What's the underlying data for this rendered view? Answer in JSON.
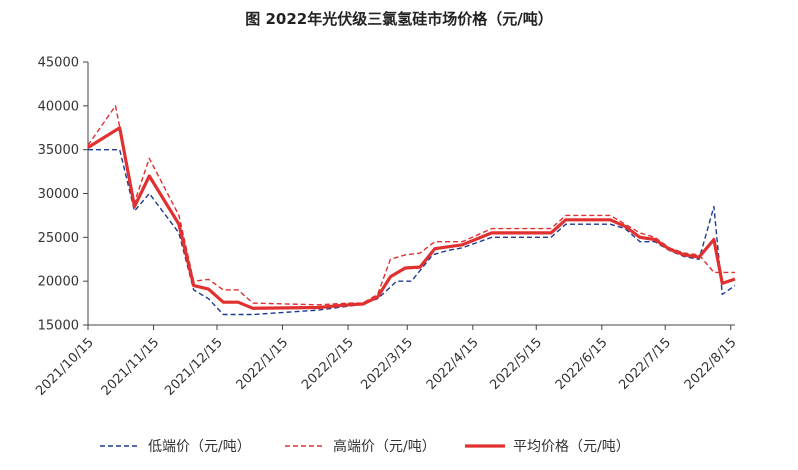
{
  "chart_data": {
    "type": "line",
    "title": "图 2022年光伏级三氯氢硅市场价格（元/吨）",
    "xlabel": "",
    "ylabel": "",
    "ylim": [
      15000,
      45000
    ],
    "yticks": [
      15000,
      20000,
      25000,
      30000,
      35000,
      40000,
      45000
    ],
    "xticks": [
      "2021/10/15",
      "2021/11/15",
      "2021/12/15",
      "2022/1/15",
      "2022/2/15",
      "2022/3/15",
      "2022/4/15",
      "2022/5/15",
      "2022/6/15",
      "2022/7/15",
      "2022/8/15"
    ],
    "grid": false,
    "legend_position": "bottom",
    "series": [
      {
        "name": "低端价（元/吨）",
        "color": "#1f3a93",
        "style": "dashed",
        "values": [
          {
            "date": "2021-10-15",
            "y": 35000
          },
          {
            "date": "2021-10-30",
            "y": 35000
          },
          {
            "date": "2021-11-06",
            "y": 28000
          },
          {
            "date": "2021-11-13",
            "y": 30000
          },
          {
            "date": "2021-11-27",
            "y": 25500
          },
          {
            "date": "2021-12-04",
            "y": 19000
          },
          {
            "date": "2021-12-11",
            "y": 18000
          },
          {
            "date": "2021-12-18",
            "y": 16200
          },
          {
            "date": "2022-01-01",
            "y": 16200
          },
          {
            "date": "2022-02-01",
            "y": 16700
          },
          {
            "date": "2022-02-20",
            "y": 17300
          },
          {
            "date": "2022-03-01",
            "y": 18000
          },
          {
            "date": "2022-03-10",
            "y": 20000
          },
          {
            "date": "2022-03-17",
            "y": 20000
          },
          {
            "date": "2022-03-27",
            "y": 23000
          },
          {
            "date": "2022-04-03",
            "y": 23500
          },
          {
            "date": "2022-04-10",
            "y": 23800
          },
          {
            "date": "2022-04-24",
            "y": 25000
          },
          {
            "date": "2022-05-15",
            "y": 25000
          },
          {
            "date": "2022-05-22",
            "y": 25000
          },
          {
            "date": "2022-05-29",
            "y": 26500
          },
          {
            "date": "2022-06-19",
            "y": 26500
          },
          {
            "date": "2022-06-26",
            "y": 26000
          },
          {
            "date": "2022-07-03",
            "y": 24500
          },
          {
            "date": "2022-07-10",
            "y": 24500
          },
          {
            "date": "2022-07-17",
            "y": 23500
          },
          {
            "date": "2022-07-24",
            "y": 22800
          },
          {
            "date": "2022-07-31",
            "y": 22500
          },
          {
            "date": "2022-08-07",
            "y": 28500
          },
          {
            "date": "2022-08-11",
            "y": 18500
          },
          {
            "date": "2022-08-17",
            "y": 19500
          }
        ]
      },
      {
        "name": "高端价（元/吨）",
        "color": "#e03030",
        "style": "dashed",
        "values": [
          {
            "date": "2021-10-15",
            "y": 35500
          },
          {
            "date": "2021-10-28",
            "y": 40000
          },
          {
            "date": "2021-11-06",
            "y": 29000
          },
          {
            "date": "2021-11-13",
            "y": 34000
          },
          {
            "date": "2021-11-27",
            "y": 27500
          },
          {
            "date": "2021-12-04",
            "y": 20000
          },
          {
            "date": "2021-12-11",
            "y": 20200
          },
          {
            "date": "2021-12-18",
            "y": 19000
          },
          {
            "date": "2021-12-25",
            "y": 19000
          },
          {
            "date": "2022-01-01",
            "y": 17500
          },
          {
            "date": "2022-02-01",
            "y": 17300
          },
          {
            "date": "2022-02-15",
            "y": 17500
          },
          {
            "date": "2022-02-22",
            "y": 17500
          },
          {
            "date": "2022-03-01",
            "y": 18500
          },
          {
            "date": "2022-03-07",
            "y": 22500
          },
          {
            "date": "2022-03-14",
            "y": 23000
          },
          {
            "date": "2022-03-21",
            "y": 23200
          },
          {
            "date": "2022-03-28",
            "y": 24500
          },
          {
            "date": "2022-04-10",
            "y": 24500
          },
          {
            "date": "2022-04-24",
            "y": 26000
          },
          {
            "date": "2022-05-15",
            "y": 26000
          },
          {
            "date": "2022-05-22",
            "y": 26000
          },
          {
            "date": "2022-05-29",
            "y": 27500
          },
          {
            "date": "2022-06-19",
            "y": 27500
          },
          {
            "date": "2022-06-26",
            "y": 26500
          },
          {
            "date": "2022-07-03",
            "y": 25500
          },
          {
            "date": "2022-07-10",
            "y": 25000
          },
          {
            "date": "2022-07-17",
            "y": 23800
          },
          {
            "date": "2022-07-24",
            "y": 23200
          },
          {
            "date": "2022-07-31",
            "y": 23000
          },
          {
            "date": "2022-08-07",
            "y": 21000
          },
          {
            "date": "2022-08-11",
            "y": 21000
          },
          {
            "date": "2022-08-17",
            "y": 21000
          }
        ]
      },
      {
        "name": "平均价格（元/吨）",
        "color": "#e03030",
        "style": "solid",
        "values": [
          {
            "date": "2021-10-15",
            "y": 35250
          },
          {
            "date": "2021-10-30",
            "y": 37500
          },
          {
            "date": "2021-11-06",
            "y": 28500
          },
          {
            "date": "2021-11-13",
            "y": 32000
          },
          {
            "date": "2021-11-27",
            "y": 26500
          },
          {
            "date": "2021-12-04",
            "y": 19500
          },
          {
            "date": "2021-12-11",
            "y": 19100
          },
          {
            "date": "2021-12-18",
            "y": 17600
          },
          {
            "date": "2021-12-25",
            "y": 17600
          },
          {
            "date": "2022-01-01",
            "y": 16900
          },
          {
            "date": "2022-02-01",
            "y": 17000
          },
          {
            "date": "2022-02-15",
            "y": 17300
          },
          {
            "date": "2022-02-22",
            "y": 17400
          },
          {
            "date": "2022-03-01",
            "y": 18200
          },
          {
            "date": "2022-03-07",
            "y": 20500
          },
          {
            "date": "2022-03-14",
            "y": 21500
          },
          {
            "date": "2022-03-21",
            "y": 21600
          },
          {
            "date": "2022-03-28",
            "y": 23700
          },
          {
            "date": "2022-04-10",
            "y": 24150
          },
          {
            "date": "2022-04-24",
            "y": 25500
          },
          {
            "date": "2022-05-15",
            "y": 25500
          },
          {
            "date": "2022-05-22",
            "y": 25500
          },
          {
            "date": "2022-05-29",
            "y": 27000
          },
          {
            "date": "2022-06-19",
            "y": 27000
          },
          {
            "date": "2022-06-26",
            "y": 26250
          },
          {
            "date": "2022-07-03",
            "y": 25000
          },
          {
            "date": "2022-07-10",
            "y": 24750
          },
          {
            "date": "2022-07-17",
            "y": 23650
          },
          {
            "date": "2022-07-24",
            "y": 23000
          },
          {
            "date": "2022-07-31",
            "y": 22750
          },
          {
            "date": "2022-08-07",
            "y": 24750
          },
          {
            "date": "2022-08-11",
            "y": 19750
          },
          {
            "date": "2022-08-17",
            "y": 20250
          }
        ]
      }
    ]
  }
}
